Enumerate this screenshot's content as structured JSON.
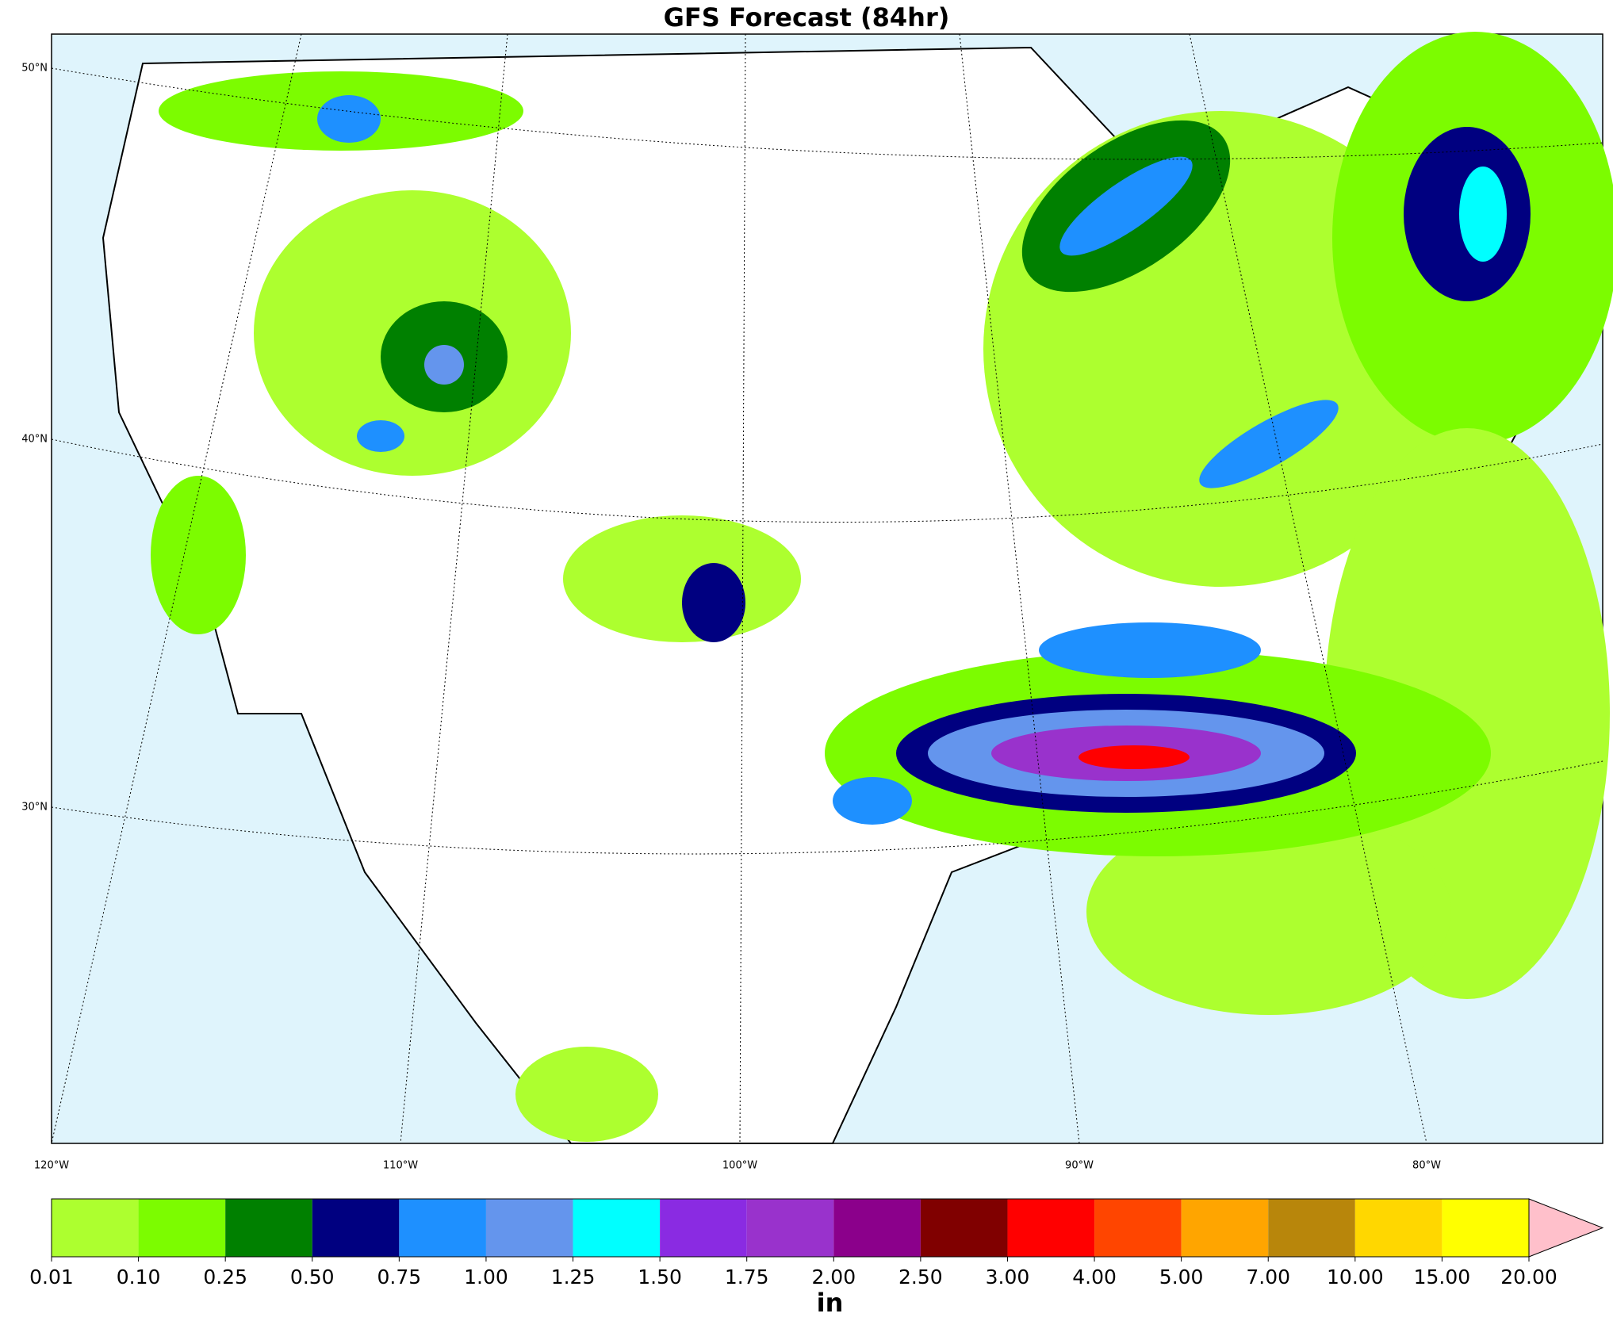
{
  "map": {
    "title": "GFS Forecast (84hr)",
    "lat_labels": [
      "50°N",
      "40°N",
      "30°N"
    ],
    "lon_labels": [
      "120°W",
      "110°W",
      "100°W",
      "90°W",
      "80°W"
    ]
  },
  "colorbar": {
    "ticks": [
      {
        "value": 0.01,
        "label": "0.01"
      },
      {
        "value": 0.1,
        "label": "0.10"
      },
      {
        "value": 0.25,
        "label": "0.25"
      },
      {
        "value": 0.5,
        "label": "0.50"
      },
      {
        "value": 0.75,
        "label": "0.75"
      },
      {
        "value": 1,
        "label": "1.00"
      },
      {
        "value": 1.25,
        "label": "1.25"
      },
      {
        "value": 1.5,
        "label": "1.50"
      },
      {
        "value": 1.75,
        "label": "1.75"
      },
      {
        "value": 2,
        "label": "2.00"
      },
      {
        "value": 2.5,
        "label": "2.50"
      },
      {
        "value": 3,
        "label": "3.00"
      },
      {
        "value": 4,
        "label": "4.00"
      },
      {
        "value": 5,
        "label": "5.00"
      },
      {
        "value": 7,
        "label": "7.00"
      },
      {
        "value": 10,
        "label": "10.00"
      },
      {
        "value": 15,
        "label": "15.00"
      },
      {
        "value": 20,
        "label": "20.00"
      }
    ],
    "colors": [
      "#adff2f",
      "#7cfc00",
      "#008000",
      "#000080",
      "#1e90ff",
      "#6495ed",
      "#00ffff",
      "#8a2be2",
      "#9932cc",
      "#8b008b",
      "#800000",
      "#ff0000",
      "#ff4500",
      "#ffa500",
      "#b8860b",
      "#ffd700",
      "#ffff00"
    ],
    "extend_color": "#ffc0cb",
    "unit": "in"
  }
}
